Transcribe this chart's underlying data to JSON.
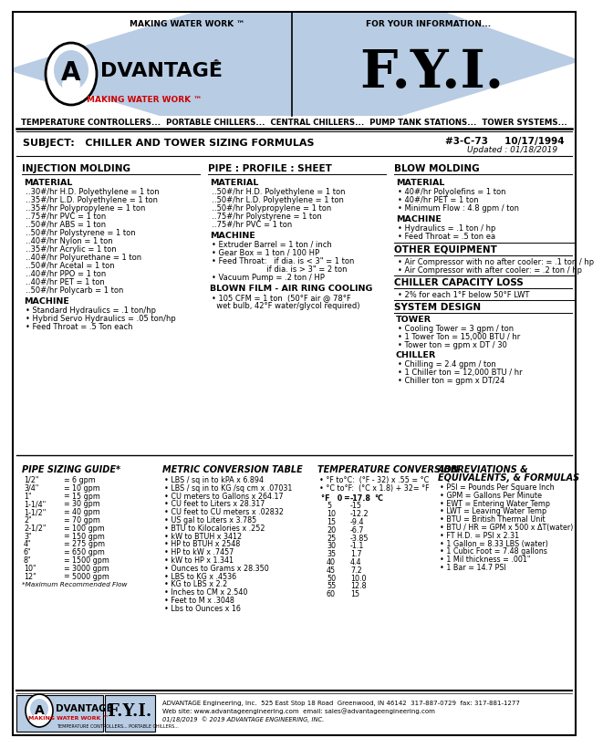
{
  "bg_color": "#ffffff",
  "header_bg": "#b8cce4",
  "red_text": "#cc0000",
  "title_text": "SUBJECT:   CHILLER AND TOWER SIZING FORMULAS",
  "doc_num": "#3-C-73     10/17/1994",
  "doc_updated": "Updated : 01/18/2019",
  "tagline": "TEMPERATURE CONTROLLERS...  PORTABLE CHILLERS...  CENTRAL CHILLERS...  PUMP TANK STATIONS...  TOWER SYSTEMS...",
  "making_water_work": "MAKING WATER WORK ™",
  "for_your_info": "FOR YOUR INFORMATION...",
  "injection_molding_title": "INJECTION MOLDING",
  "injection_material_title": "MATERIAL",
  "injection_material": [
    "‥30#/hr H.D. Polyethylene = 1 ton",
    "‥35#/hr L.D. Polyethylene = 1 ton",
    "‥35#/hr Polypropylene = 1 ton",
    "‥75#/hr PVC = 1 ton",
    "‥50#/hr ABS = 1 ton",
    "‥50#/hr Polystyrene = 1 ton",
    "‥40#/hr Nylon = 1 ton",
    "‥35#/hr Acrylic = 1 ton",
    "‥40#/hr Polyurethane = 1 ton",
    "‥50#/hr Acetal = 1 ton",
    "‥40#/hr PPO = 1 ton",
    "‥40#/hr PET = 1 ton",
    "‥50#/hr Polycarb = 1 ton"
  ],
  "injection_machine_title": "MACHINE",
  "injection_machine": [
    "• Standard Hydraulics = .1 ton/hp",
    "• Hybrid Servo Hydraulics = .05 ton/hp",
    "• Feed Throat = .5 Ton each"
  ],
  "pipe_title": "PIPE : PROFILE : SHEET",
  "pipe_material_title": "MATERIAL",
  "pipe_material": [
    "‥50#/hr H.D. Polyethylene = 1 ton",
    "‥50#/hr L.D. Polyethylene = 1 ton",
    "‥50#/hr Polypropylene = 1 ton",
    "‥75#/hr Polystyrene = 1 ton",
    "‥75#/hr PVC = 1 ton"
  ],
  "pipe_machine_title": "MACHINE",
  "pipe_machine": [
    "• Extruder Barrel = 1 ton / inch",
    "• Gear Box = 1 ton / 100 HP",
    "• Feed Throat:   if dia. is < 3\" = 1 ton",
    "                       if dia. is > 3\" = 2 ton",
    "• Vacuum Pump = .2 ton / HP"
  ],
  "blown_film_title": "BLOWN FILM - AIR RING COOLING",
  "blown_film": [
    "• 105 CFM = 1 ton  (50°F air @ 78°F",
    "  wet bulb, 42°F water/glycol required)"
  ],
  "blow_molding_title": "BLOW MOLDING",
  "blow_material_title": "MATERIAL",
  "blow_material": [
    "• 40#/hr Polyolefins = 1 ton",
    "• 40#/hr PET = 1 ton",
    "• Minimum Flow : 4.8 gpm / ton"
  ],
  "blow_machine_title": "MACHINE",
  "blow_machine": [
    "• Hydraulics = .1 ton / hp",
    "• Feed Throat = .5 ton ea"
  ],
  "other_equipment_title": "OTHER EQUIPMENT",
  "other_equipment": [
    "• Air Compressor with no after cooler: = .1 ton / hp",
    "• Air Compressor with after cooler: = .2 ton / hp"
  ],
  "chiller_capacity_title": "CHILLER CAPACITY LOSS",
  "chiller_capacity": [
    "• 2% for each 1°F below 50°F LWT"
  ],
  "system_design_title": "SYSTEM DESIGN",
  "system_tower_title": "TOWER",
  "system_tower": [
    "• Cooling Tower = 3 gpm / ton",
    "• 1 Tower Ton = 15,000 BTU / hr",
    "• Tower ton = gpm x DT / 30"
  ],
  "system_chiller_title": "CHILLER",
  "system_chiller": [
    "• Chilling = 2.4 gpm / ton",
    "• 1 Chiller ton = 12,000 BTU / hr",
    "• Chiller ton = gpm x DT/24"
  ],
  "pipe_sizing_title": "PIPE SIZING GUIDE*",
  "pipe_sizing_left": [
    "1/2\"",
    "3/4\"",
    "1\"",
    "1-1/4\"",
    "1-1/2\"",
    "2\"",
    "2-1/2\"",
    "3\"",
    "4\"",
    "6\"",
    "8\"",
    "10\"",
    "12\""
  ],
  "pipe_sizing_right": [
    "6 gpm",
    "10 gpm",
    "15 gpm",
    "30 gpm",
    "40 gpm",
    "70 gpm",
    "100 gpm",
    "150 gpm",
    "275 gpm",
    "650 gpm",
    "1500 gpm",
    "3000 gpm",
    "5000 gpm"
  ],
  "pipe_sizing_note": "*Maximum Recommended Flow",
  "metric_title": "METRIC CONVERSION TABLE",
  "metric": [
    "• LBS / sq in to kPA x 6.894",
    "• LBS / sq in to KG /sq cm x .07031",
    "• CU meters to Gallons x 264.17",
    "• CU feet to Liters x 28.317",
    "• CU feet to CU meters x .02832",
    "• US gal to Liters x 3.785",
    "• BTU to Kilocalories x .252",
    "• kW to BTUH x 3412",
    "• HP to BTUH x 2548",
    "• HP to kW x .7457",
    "• kW to HP x 1.341",
    "• Ounces to Grams x 28.350",
    "• LBS to KG x .4536",
    "• KG to LBS x 2.2",
    "• Inches to CM x 2.540",
    "• Feet to M x .3048",
    "• Lbs to Ounces x 16"
  ],
  "temp_title": "TEMPERATURE CONVERSION",
  "temp_intro": "• °F to°C:  (°F - 32) x .55 = °C",
  "temp_intro2": "• °C to°F:  (°C x 1.8) + 32= °F",
  "temp_data": [
    [
      "0",
      "-17.8"
    ],
    [
      "5",
      "-15"
    ],
    [
      "10",
      "-12.2"
    ],
    [
      "15",
      "-9.4"
    ],
    [
      "20",
      "-6.7"
    ],
    [
      "25",
      "-3.85"
    ],
    [
      "30",
      "-1.1"
    ],
    [
      "35",
      "1.7"
    ],
    [
      "40",
      "4.4"
    ],
    [
      "45",
      "7.2"
    ],
    [
      "50",
      "10.0"
    ],
    [
      "55",
      "12.8"
    ],
    [
      "60",
      "15"
    ]
  ],
  "abbrev_title1": "ABBREVIATIONS &",
  "abbrev_title2": "EQUIVALENTS, & FORMULAS",
  "abbrev": [
    "• PSI = Pounds Per Square Inch",
    "• GPM = Gallons Per Minute",
    "• EWT = Entering Water Temp",
    "• LWT = Leaving Water Temp",
    "• BTU = British Thermal Unit",
    "• BTU / HR = GPM x 500 x ΔT(water)",
    "• FT H.D. = PSI x 2.31",
    "• 1 Gallon = 8.33 LBS (water)",
    "• 1 Cubic Foot = 7.48 gallons",
    "• 1 Mil thickness = .001\"",
    "• 1 Bar = 14.7 PSI"
  ],
  "footer_addr": "ADVANTAGE Engineering, Inc.  525 East Stop 18 Road  Greenwood, IN 46142  317-887-0729  fax: 317-881-1277",
  "footer_web": "Web site: www.advantageengineering.com  email: sales@advantageengineering.com",
  "footer_copy": "01/18/2019  © 2019 ADVANTAGE ENGINEERING, INC."
}
